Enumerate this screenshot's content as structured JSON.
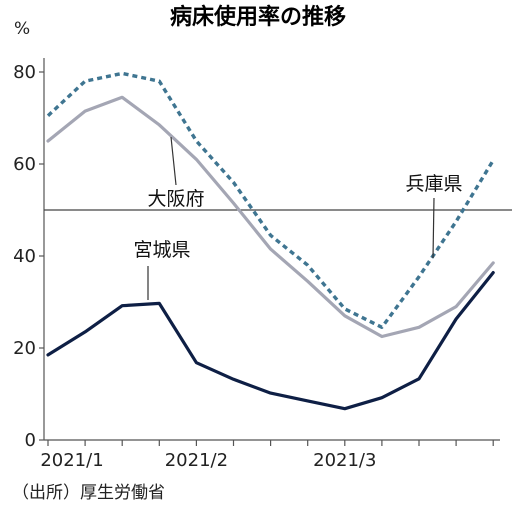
{
  "chart_data": {
    "type": "line",
    "title": "病床使用率の推移",
    "y_unit": "%",
    "ylim": [
      0,
      80
    ],
    "y_ticks": [
      0,
      20,
      40,
      60,
      80
    ],
    "x_tick_labels": [
      "2021/1",
      "2021/2",
      "2021/3"
    ],
    "x": [
      0,
      1,
      2,
      3,
      4,
      5,
      6,
      7,
      8,
      9,
      10,
      11,
      12
    ],
    "series": [
      {
        "name": "兵庫県",
        "style": "dashed",
        "color": "#3f7591",
        "values": [
          70.5,
          78.0,
          79.7,
          78.0,
          65.0,
          56.0,
          44.5,
          38.0,
          28.5,
          24.5,
          35.5,
          47.5,
          60.8
        ]
      },
      {
        "name": "大阪府",
        "style": "solid",
        "color": "#a4a6b4",
        "values": [
          65.0,
          71.5,
          74.5,
          68.5,
          61.0,
          51.5,
          41.5,
          34.5,
          27.0,
          22.5,
          24.5,
          29.0,
          38.5
        ]
      },
      {
        "name": "宮城県",
        "style": "solid",
        "color": "#0e1f45",
        "values": [
          18.5,
          23.5,
          29.2,
          29.7,
          16.8,
          13.2,
          10.2,
          8.5,
          6.8,
          9.2,
          13.3,
          26.3,
          36.4
        ]
      }
    ],
    "reference_line": 50,
    "source": "（出所）厚生労働省",
    "grid": false
  }
}
